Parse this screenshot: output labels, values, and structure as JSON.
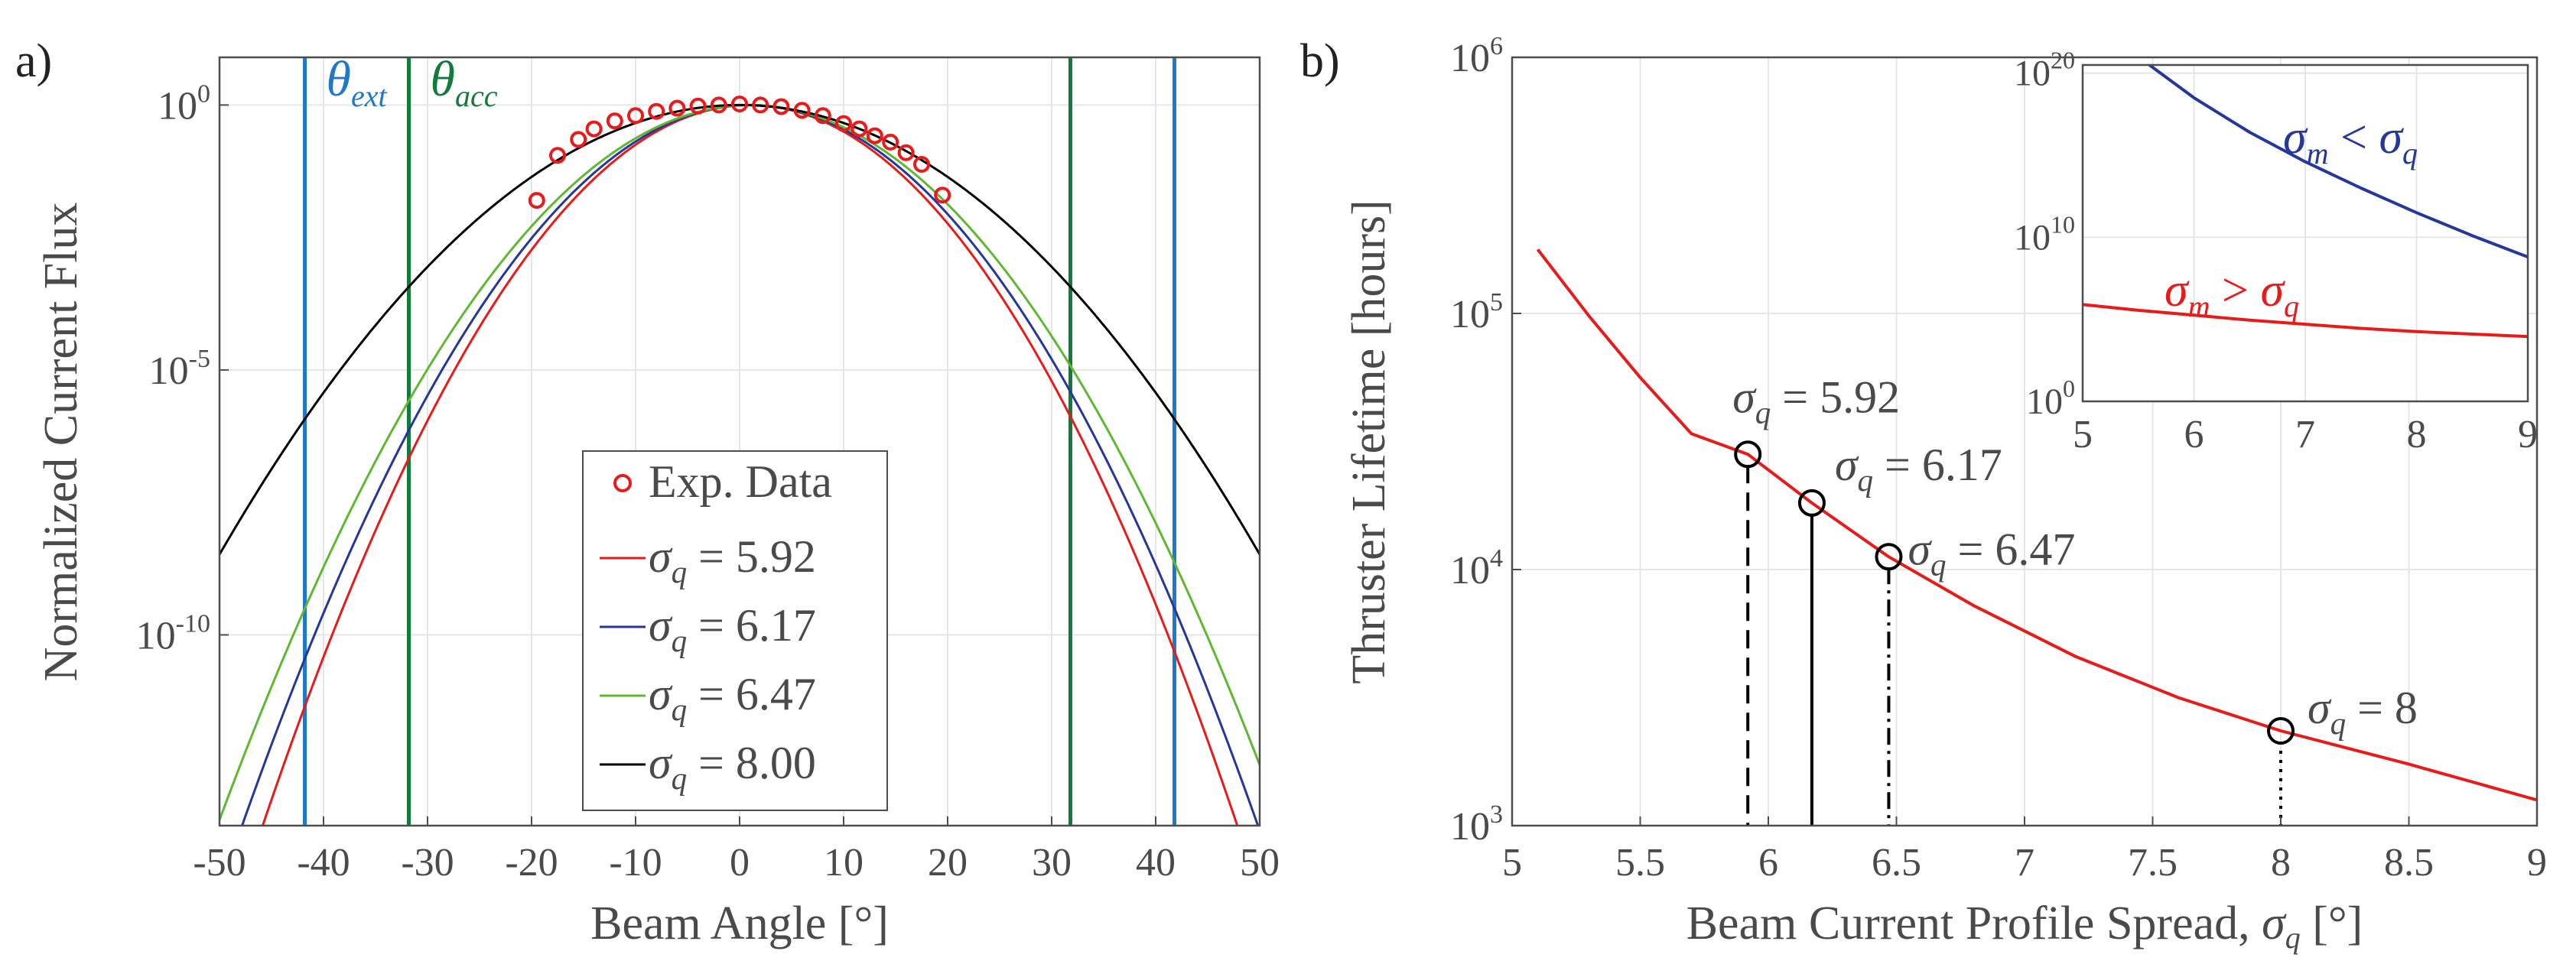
{
  "chart_data": [
    {
      "panel_label": "a)",
      "type": "line",
      "xlabel": "Beam Angle [°]",
      "ylabel": "Normalized Current Flux",
      "xlim": [
        -50,
        50
      ],
      "ylim_exp": [
        -13.6,
        0.9
      ],
      "ytick_exps": [
        0,
        -5,
        -10
      ],
      "ytick_labels": [
        {
          "base": "10",
          "exp": "0"
        },
        {
          "base": "10",
          "exp": "-5"
        },
        {
          "base": "10",
          "exp": "-10"
        }
      ],
      "xticks": [
        -50,
        -40,
        -30,
        -20,
        -10,
        0,
        10,
        20,
        30,
        40,
        50
      ],
      "xtick_labels": [
        "-50",
        "-40",
        "-30",
        "-20",
        "-10",
        "0",
        "10",
        "20",
        "30",
        "40",
        "50"
      ],
      "vlines": [
        {
          "name": "θ_ext",
          "x": -41.8,
          "color": "#1f78c8",
          "label_main": "θ",
          "label_sub": "ext"
        },
        {
          "name": "θ_ext",
          "x": 41.8,
          "color": "#1f78c8"
        },
        {
          "name": "θ_acc",
          "x": -31.8,
          "color": "#127a3a",
          "label_main": "θ",
          "label_sub": "acc"
        },
        {
          "name": "θ_acc",
          "x": 31.8,
          "color": "#127a3a"
        }
      ],
      "series": [
        {
          "name": "σ_q = 5.92",
          "sigma": 5.92,
          "mu": 1.0,
          "color": "#e81a1a"
        },
        {
          "name": "σ_q = 6.17",
          "sigma": 6.17,
          "mu": 1.0,
          "color": "#23389a"
        },
        {
          "name": "σ_q = 6.47",
          "sigma": 6.47,
          "mu": 1.0,
          "color": "#5fb832"
        },
        {
          "name": "σ_q = 8.00",
          "sigma": 8.0,
          "mu": 0.0,
          "color": "#000000"
        }
      ],
      "exp_data": {
        "name": "Exp. Data",
        "color": "#e81a1a",
        "x": [
          -19.5,
          -17.5,
          -15.5,
          -14,
          -12,
          -10,
          -8,
          -6,
          -4,
          -2,
          0,
          2,
          4,
          6,
          8,
          10,
          11.5,
          13,
          14.5,
          16,
          17.5,
          19.5
        ],
        "log10_y": [
          -1.8,
          -0.95,
          -0.65,
          -0.45,
          -0.3,
          -0.2,
          -0.12,
          -0.06,
          -0.02,
          0,
          0.02,
          0,
          -0.03,
          -0.1,
          -0.2,
          -0.35,
          -0.45,
          -0.58,
          -0.7,
          -0.9,
          -1.12,
          -1.7
        ]
      },
      "legend": [
        {
          "kind": "marker",
          "text": "Exp. Data",
          "color": "#e81a1a"
        },
        {
          "kind": "line",
          "main": "σ",
          "sub": "q",
          "value": "= 5.92",
          "color": "#e81a1a"
        },
        {
          "kind": "line",
          "main": "σ",
          "sub": "q",
          "value": "= 6.17",
          "color": "#23389a"
        },
        {
          "kind": "line",
          "main": "σ",
          "sub": "q",
          "value": "= 6.47",
          "color": "#5fb832"
        },
        {
          "kind": "line",
          "main": "σ",
          "sub": "q",
          "value": "= 8.00",
          "color": "#000000"
        }
      ]
    },
    {
      "panel_label": "b)",
      "type": "line",
      "xlabel_text": "Beam Current Profile Spread, ",
      "xlabel_sym": "σ",
      "xlabel_sub": "q",
      "xlabel_unit": " [°]",
      "ylabel": "Thruster Lifetime [hours]",
      "xlim": [
        5,
        9
      ],
      "ylim_exp": [
        3,
        6
      ],
      "xticks": [
        5,
        5.5,
        6,
        6.5,
        7,
        7.5,
        8,
        8.5,
        9
      ],
      "xtick_labels": [
        "5",
        "5.5",
        "6",
        "6.5",
        "7",
        "7.5",
        "8",
        "8.5",
        "9"
      ],
      "ytick_labels": [
        {
          "base": "10",
          "exp": "3"
        },
        {
          "base": "10",
          "exp": "4"
        },
        {
          "base": "10",
          "exp": "5"
        },
        {
          "base": "10",
          "exp": "6"
        }
      ],
      "curve": {
        "color": "#e81a1a",
        "x": [
          5.1,
          5.3,
          5.5,
          5.7,
          5.92,
          6.17,
          6.47,
          6.8,
          7.2,
          7.6,
          8.0,
          8.5,
          9.0
        ],
        "log10_y": [
          5.25,
          4.99,
          4.75,
          4.53,
          4.45,
          4.26,
          4.05,
          3.86,
          3.66,
          3.5,
          3.37,
          3.24,
          3.1
        ]
      },
      "points": [
        {
          "sigma": 5.92,
          "log10_y": 4.45,
          "dash": "24,12",
          "label_main": "σ",
          "label_sub": "q",
          "label_value": " = 5.92"
        },
        {
          "sigma": 6.17,
          "log10_y": 4.26,
          "dash": "",
          "label_main": "σ",
          "label_sub": "q",
          "label_value": " = 6.17"
        },
        {
          "sigma": 6.47,
          "log10_y": 4.05,
          "dash": "22,8,4,8",
          "label_main": "σ",
          "label_sub": "q",
          "label_value": " = 6.47"
        },
        {
          "sigma": 8.0,
          "log10_y": 3.37,
          "dash": "4,8",
          "label_main": "σ",
          "label_sub": "q",
          "label_value": " = 8"
        }
      ],
      "inset": {
        "xlim": [
          5,
          9
        ],
        "ylim_exp": [
          0,
          20.5
        ],
        "xticks": [
          5,
          6,
          7,
          8,
          9
        ],
        "xtick_labels": [
          "5",
          "6",
          "7",
          "8",
          "9"
        ],
        "ytick_labels": [
          {
            "base": "10",
            "exp": "0"
          },
          {
            "base": "10",
            "exp": "10"
          },
          {
            "base": "10",
            "exp": "20"
          }
        ],
        "series": [
          {
            "name": "σ_m < σ_q",
            "color": "#23389a",
            "x": [
              5.6,
              6,
              6.5,
              7,
              7.5,
              8,
              8.5,
              9
            ],
            "log10_y": [
              20.5,
              18.5,
              16.4,
              14.6,
              13.0,
              11.5,
              10.1,
              8.8
            ]
          },
          {
            "name": "σ_m > σ_q",
            "color": "#e81a1a",
            "x": [
              5,
              5.5,
              6,
              6.5,
              7,
              7.5,
              8,
              8.5,
              9
            ],
            "log10_y": [
              5.9,
              5.55,
              5.25,
              4.95,
              4.7,
              4.45,
              4.25,
              4.1,
              3.95
            ]
          }
        ],
        "labels": [
          {
            "main": "σ",
            "sub": "m",
            "op": " < ",
            "main2": "σ",
            "sub2": "q",
            "color": "#23389a"
          },
          {
            "main": "σ",
            "sub": "m",
            "op": " > ",
            "main2": "σ",
            "sub2": "q",
            "color": "#e81a1a"
          }
        ]
      }
    }
  ]
}
